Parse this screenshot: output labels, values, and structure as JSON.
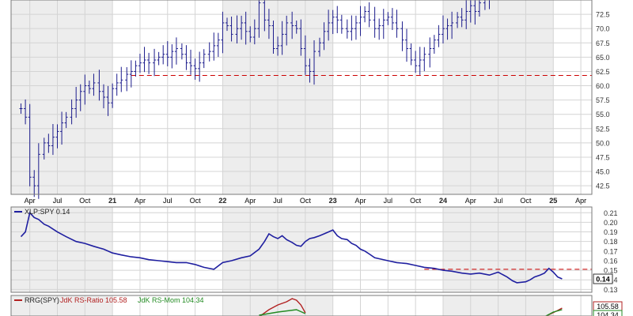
{
  "chart_data": [
    {
      "type": "bar",
      "panel": "price",
      "subtype": "weekly OHLC bars",
      "title": "",
      "xlabel": "",
      "ylabel": "",
      "y_ticks": [
        "42.5",
        "45.0",
        "47.5",
        "50.0",
        "52.5",
        "55.0",
        "57.5",
        "60.0",
        "62.5",
        "65.0",
        "67.5",
        "70.0",
        "72.5"
      ],
      "ylim": [
        41.0,
        75.0
      ],
      "x_ticks": [
        "Apr",
        "Jul",
        "Oct",
        "21",
        "Apr",
        "Jul",
        "Oct",
        "22",
        "Apr",
        "Jul",
        "Oct",
        "23",
        "Apr",
        "Jul",
        "Oct",
        "24",
        "Apr",
        "Jul",
        "Oct",
        "25",
        "Apr"
      ],
      "x_start": "2020-03",
      "x_end": "2025-04",
      "grid": true,
      "alternating_year_shading": true,
      "support_line": {
        "value": 61.8,
        "from": "2021-03",
        "color": "#cc0000",
        "style": "dashed"
      },
      "series": [
        {
          "values": [
            [
              2020.17,
              56.0
            ],
            [
              2020.21,
              54.5
            ],
            [
              2020.25,
              44.0
            ],
            [
              2020.29,
              42.5
            ],
            [
              2020.33,
              48.0
            ],
            [
              2020.38,
              50.0
            ],
            [
              2020.42,
              49.5
            ],
            [
              2020.46,
              51.0
            ],
            [
              2020.5,
              52.0
            ],
            [
              2020.54,
              53.5
            ],
            [
              2020.58,
              54.5
            ],
            [
              2020.63,
              56.0
            ],
            [
              2020.67,
              57.5
            ],
            [
              2020.71,
              59.0
            ],
            [
              2020.75,
              60.0
            ],
            [
              2020.79,
              59.5
            ],
            [
              2020.83,
              60.5
            ],
            [
              2020.88,
              59.0
            ],
            [
              2020.92,
              58.0
            ],
            [
              2020.96,
              57.0
            ],
            [
              2021.0,
              59.5
            ],
            [
              2021.04,
              60.5
            ],
            [
              2021.08,
              61.0
            ],
            [
              2021.13,
              62.0
            ],
            [
              2021.17,
              62.5
            ],
            [
              2021.21,
              63.5
            ],
            [
              2021.25,
              64.0
            ],
            [
              2021.29,
              64.5
            ],
            [
              2021.33,
              64.0
            ],
            [
              2021.38,
              64.5
            ],
            [
              2021.42,
              65.0
            ],
            [
              2021.46,
              65.5
            ],
            [
              2021.5,
              65.0
            ],
            [
              2021.54,
              66.0
            ],
            [
              2021.58,
              66.5
            ],
            [
              2021.63,
              65.5
            ],
            [
              2021.67,
              64.0
            ],
            [
              2021.71,
              63.5
            ],
            [
              2021.75,
              63.0
            ],
            [
              2021.79,
              64.0
            ],
            [
              2021.83,
              65.5
            ],
            [
              2021.88,
              66.0
            ],
            [
              2021.92,
              67.0
            ],
            [
              2021.96,
              68.0
            ],
            [
              2022.0,
              71.0
            ],
            [
              2022.04,
              70.5
            ],
            [
              2022.08,
              69.0
            ],
            [
              2022.13,
              70.0
            ],
            [
              2022.17,
              71.0
            ],
            [
              2022.21,
              69.5
            ],
            [
              2022.25,
              68.5
            ],
            [
              2022.29,
              70.0
            ],
            [
              2022.33,
              74.5
            ],
            [
              2022.38,
              71.5
            ],
            [
              2022.42,
              70.5
            ],
            [
              2022.46,
              66.5
            ],
            [
              2022.5,
              67.0
            ],
            [
              2022.54,
              69.0
            ],
            [
              2022.58,
              71.0
            ],
            [
              2022.63,
              70.5
            ],
            [
              2022.67,
              70.0
            ],
            [
              2022.71,
              66.5
            ],
            [
              2022.75,
              63.5
            ],
            [
              2022.79,
              62.5
            ],
            [
              2022.83,
              66.0
            ],
            [
              2022.88,
              67.5
            ],
            [
              2022.92,
              69.5
            ],
            [
              2022.96,
              71.0
            ],
            [
              2023.0,
              72.0
            ],
            [
              2023.04,
              71.5
            ],
            [
              2023.08,
              70.0
            ],
            [
              2023.13,
              69.5
            ],
            [
              2023.17,
              70.0
            ],
            [
              2023.21,
              71.0
            ],
            [
              2023.25,
              72.0
            ],
            [
              2023.29,
              73.0
            ],
            [
              2023.33,
              71.5
            ],
            [
              2023.38,
              70.0
            ],
            [
              2023.42,
              70.5
            ],
            [
              2023.46,
              71.5
            ],
            [
              2023.5,
              72.0
            ],
            [
              2023.54,
              71.0
            ],
            [
              2023.58,
              70.0
            ],
            [
              2023.63,
              68.0
            ],
            [
              2023.67,
              66.5
            ],
            [
              2023.71,
              64.5
            ],
            [
              2023.75,
              63.5
            ],
            [
              2023.79,
              64.5
            ],
            [
              2023.83,
              65.5
            ],
            [
              2023.88,
              66.5
            ],
            [
              2023.92,
              68.0
            ],
            [
              2023.96,
              69.0
            ],
            [
              2024.0,
              70.0
            ],
            [
              2024.04,
              70.5
            ],
            [
              2024.08,
              71.0
            ],
            [
              2024.13,
              72.0
            ],
            [
              2024.17,
              71.5
            ],
            [
              2024.21,
              73.0
            ],
            [
              2024.25,
              74.0
            ],
            [
              2024.29,
              73.0
            ],
            [
              2024.33,
              74.5
            ],
            [
              2024.38,
              75.0
            ],
            [
              2024.42,
              75.5
            ]
          ]
        }
      ]
    },
    {
      "type": "line",
      "panel": "relative strength",
      "legend": "XLP:SPY 0.14",
      "legend_color": "#1f1fa0",
      "y_ticks": [
        "0.13",
        "0.14",
        "0.15",
        "0.16",
        "0.17",
        "0.18",
        "0.19",
        "0.20",
        "0.21"
      ],
      "ylim": [
        0.127,
        0.216
      ],
      "current_value_label": "0.14",
      "grid": true,
      "dashed_line": {
        "value": 0.151,
        "from": "2023-11",
        "color": "#cc0000",
        "style": "dashed"
      },
      "series": [
        {
          "values": [
            [
              2020.17,
              0.185
            ],
            [
              2020.21,
              0.19
            ],
            [
              2020.25,
              0.21
            ],
            [
              2020.29,
              0.205
            ],
            [
              2020.33,
              0.203
            ],
            [
              2020.38,
              0.198
            ],
            [
              2020.42,
              0.196
            ],
            [
              2020.46,
              0.193
            ],
            [
              2020.5,
              0.19
            ],
            [
              2020.58,
              0.185
            ],
            [
              2020.67,
              0.18
            ],
            [
              2020.75,
              0.178
            ],
            [
              2020.83,
              0.175
            ],
            [
              2020.92,
              0.172
            ],
            [
              2021.0,
              0.168
            ],
            [
              2021.08,
              0.166
            ],
            [
              2021.17,
              0.164
            ],
            [
              2021.25,
              0.163
            ],
            [
              2021.33,
              0.161
            ],
            [
              2021.42,
              0.16
            ],
            [
              2021.5,
              0.159
            ],
            [
              2021.58,
              0.158
            ],
            [
              2021.67,
              0.158
            ],
            [
              2021.75,
              0.156
            ],
            [
              2021.83,
              0.153
            ],
            [
              2021.92,
              0.151
            ],
            [
              2022.0,
              0.158
            ],
            [
              2022.08,
              0.16
            ],
            [
              2022.17,
              0.163
            ],
            [
              2022.25,
              0.165
            ],
            [
              2022.33,
              0.172
            ],
            [
              2022.38,
              0.18
            ],
            [
              2022.42,
              0.188
            ],
            [
              2022.46,
              0.185
            ],
            [
              2022.5,
              0.183
            ],
            [
              2022.54,
              0.186
            ],
            [
              2022.58,
              0.182
            ],
            [
              2022.63,
              0.179
            ],
            [
              2022.67,
              0.176
            ],
            [
              2022.71,
              0.175
            ],
            [
              2022.75,
              0.18
            ],
            [
              2022.79,
              0.183
            ],
            [
              2022.83,
              0.184
            ],
            [
              2022.88,
              0.186
            ],
            [
              2022.92,
              0.188
            ],
            [
              2022.96,
              0.19
            ],
            [
              2023.0,
              0.192
            ],
            [
              2023.04,
              0.186
            ],
            [
              2023.08,
              0.183
            ],
            [
              2023.13,
              0.182
            ],
            [
              2023.17,
              0.178
            ],
            [
              2023.21,
              0.176
            ],
            [
              2023.25,
              0.172
            ],
            [
              2023.29,
              0.17
            ],
            [
              2023.33,
              0.167
            ],
            [
              2023.38,
              0.163
            ],
            [
              2023.42,
              0.162
            ],
            [
              2023.5,
              0.16
            ],
            [
              2023.58,
              0.158
            ],
            [
              2023.67,
              0.157
            ],
            [
              2023.75,
              0.155
            ],
            [
              2023.83,
              0.153
            ],
            [
              2023.92,
              0.152
            ],
            [
              2024.0,
              0.15
            ],
            [
              2024.08,
              0.149
            ],
            [
              2024.17,
              0.147
            ],
            [
              2024.25,
              0.146
            ],
            [
              2024.33,
              0.147
            ],
            [
              2024.42,
              0.145
            ],
            [
              2024.5,
              0.148
            ],
            [
              2024.58,
              0.143
            ],
            [
              2024.63,
              0.139
            ],
            [
              2024.67,
              0.137
            ],
            [
              2024.75,
              0.138
            ],
            [
              2024.79,
              0.14
            ],
            [
              2024.83,
              0.143
            ],
            [
              2024.88,
              0.145
            ],
            [
              2024.92,
              0.147
            ],
            [
              2024.96,
              0.152
            ],
            [
              2025.0,
              0.148
            ],
            [
              2025.04,
              0.143
            ],
            [
              2025.08,
              0.141
            ]
          ]
        }
      ]
    },
    {
      "type": "line",
      "panel": "RRG",
      "legend_prefix": "RRG(SPY)",
      "series": [
        {
          "name": "JdK RS-Ratio 105.58",
          "color": "#b22222",
          "current_value_label": "105.58"
        },
        {
          "name": "JdK RS-Mom 104.34",
          "color": "#228b22",
          "current_value_label": "104.34"
        }
      ]
    }
  ]
}
